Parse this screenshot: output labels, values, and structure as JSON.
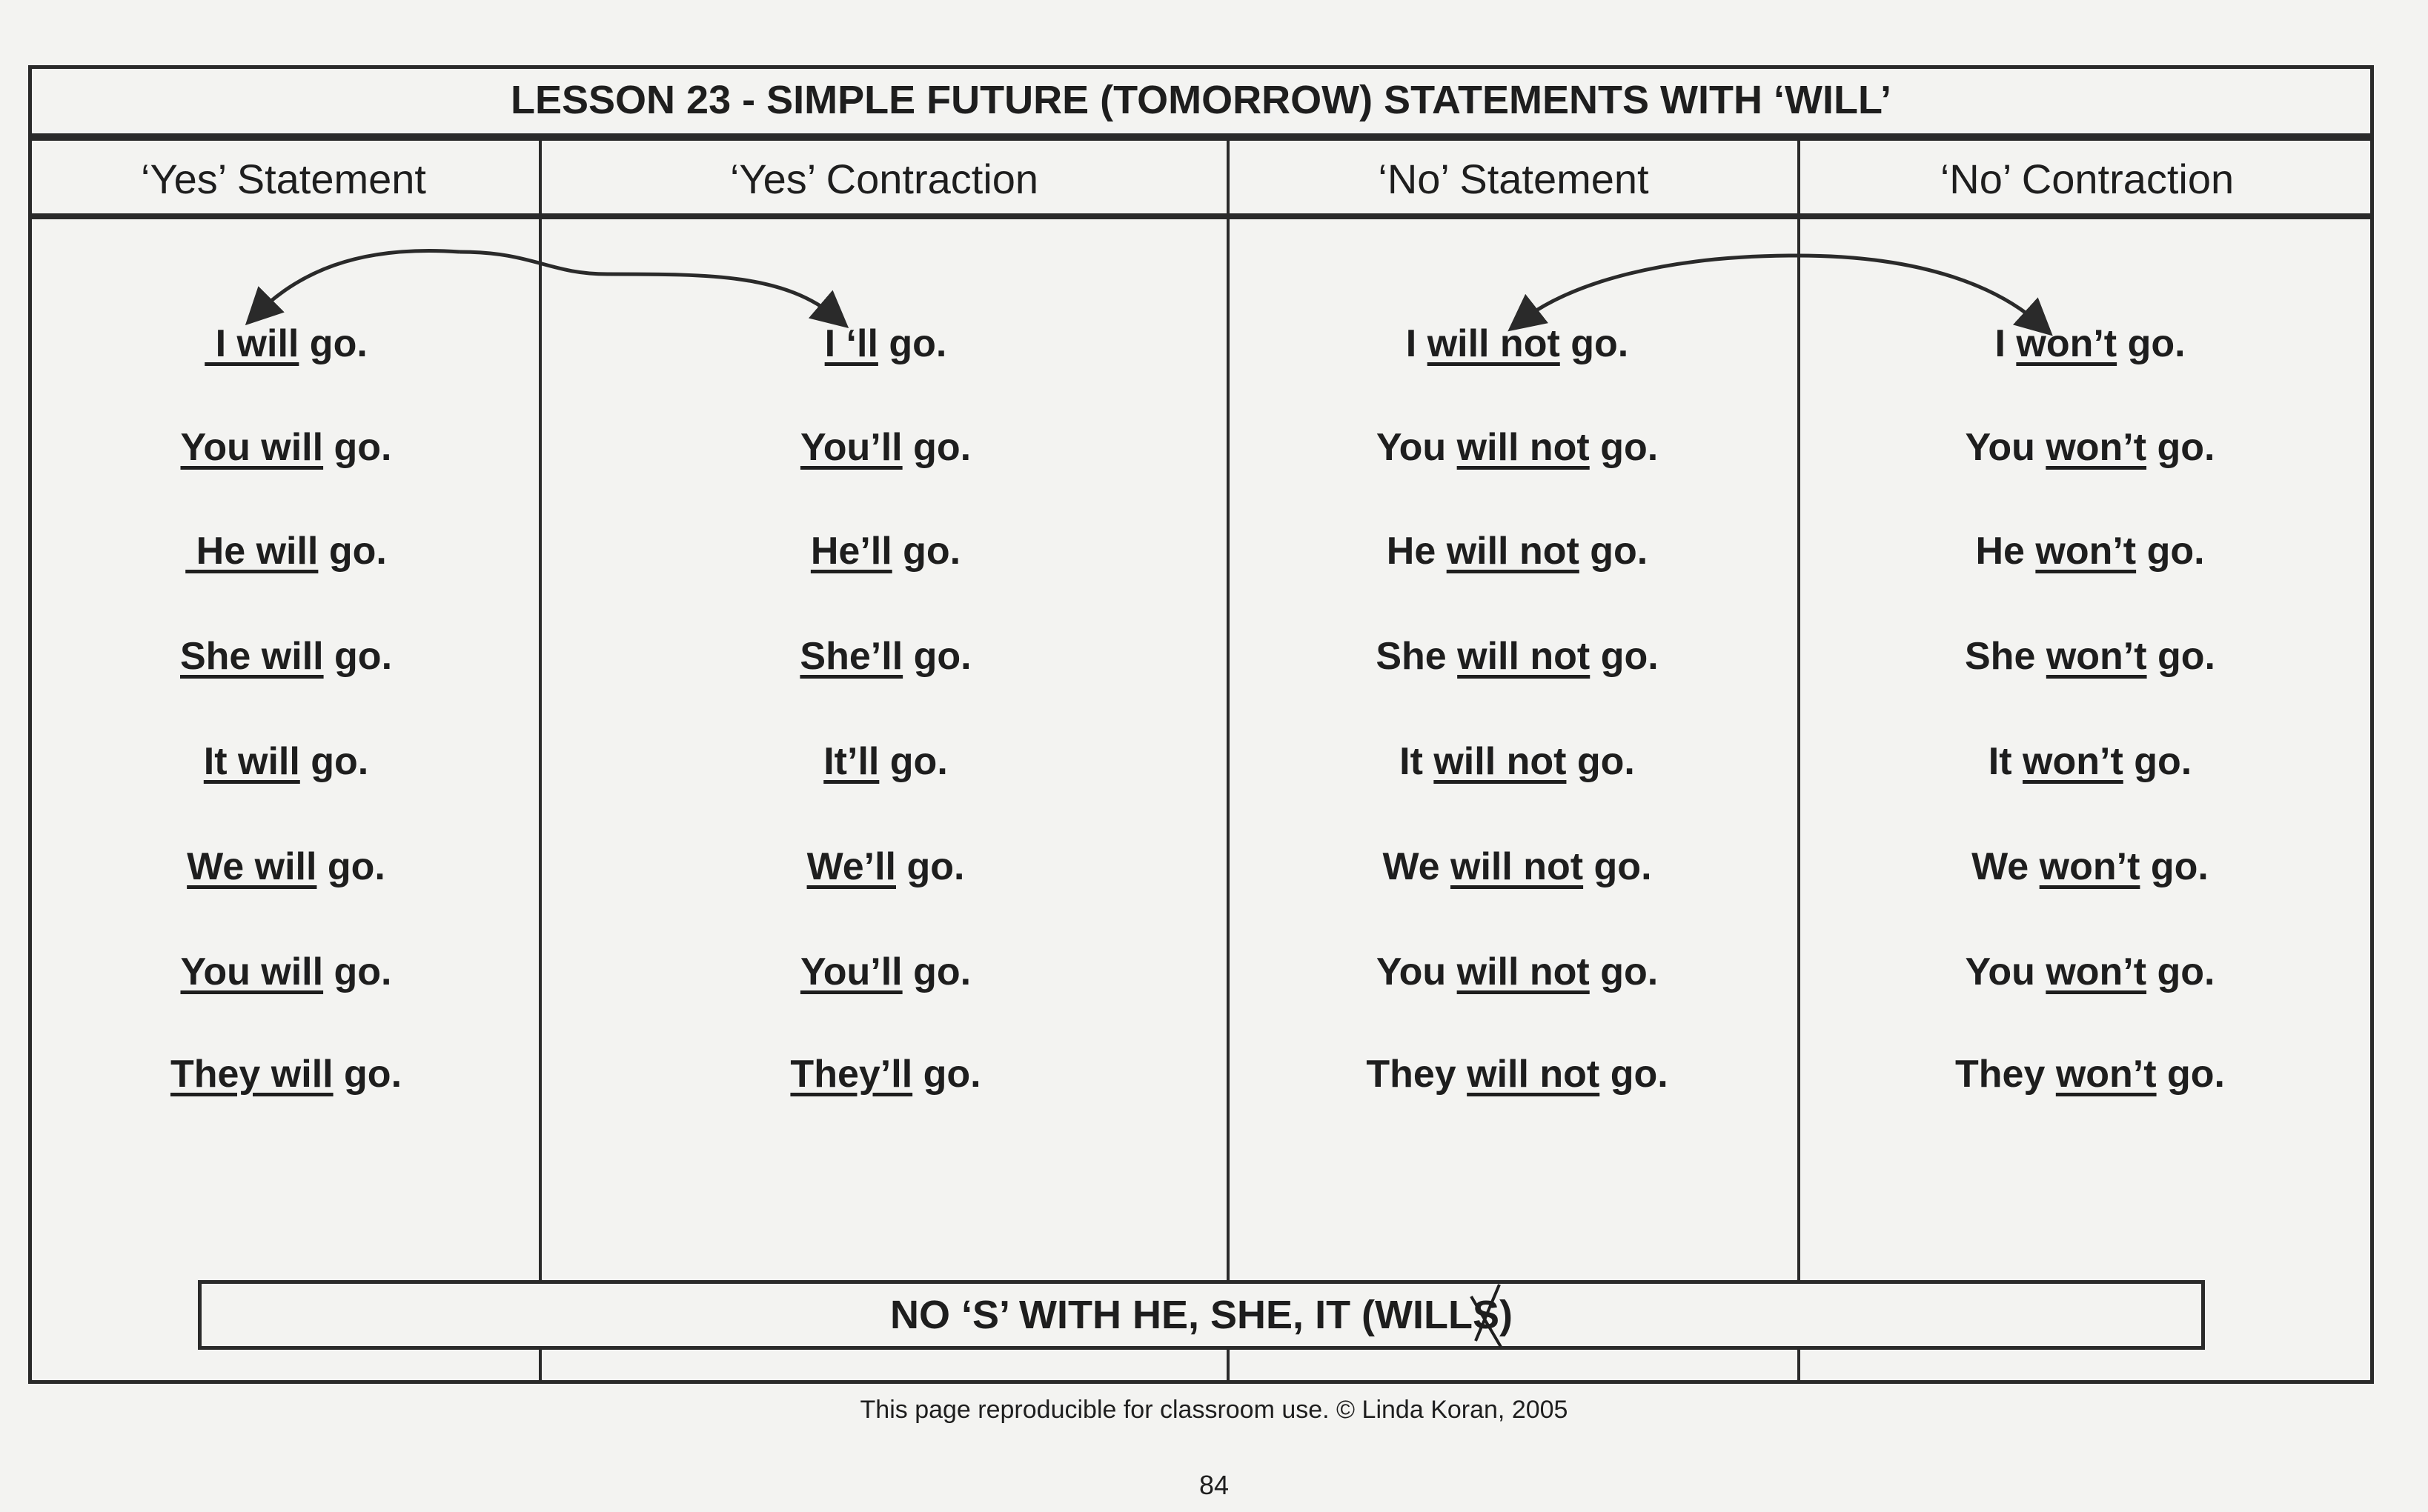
{
  "title": "LESSON 23 - SIMPLE FUTURE  (TOMORROW) STATEMENTS WITH ‘WILL’",
  "columns": [
    "‘Yes’ Statement",
    "‘Yes’ Contraction",
    "‘No’ Statement",
    "‘No’ Contraction"
  ],
  "rows": [
    [
      [
        {
          "t": " I will",
          "u": true
        },
        {
          "t": " go.",
          "u": false
        }
      ],
      [
        {
          "t": "I ‘ll",
          "u": true
        },
        {
          "t": " go.",
          "u": false
        }
      ],
      [
        {
          "t": "I ",
          "u": false
        },
        {
          "t": "will not",
          "u": true
        },
        {
          "t": " go.",
          "u": false
        }
      ],
      [
        {
          "t": "I ",
          "u": false
        },
        {
          "t": "won’t",
          "u": true
        },
        {
          "t": " go.",
          "u": false
        }
      ]
    ],
    [
      [
        {
          "t": "You will",
          "u": true
        },
        {
          "t": " go.",
          "u": false
        }
      ],
      [
        {
          "t": "You’ll",
          "u": true
        },
        {
          "t": " go.",
          "u": false
        }
      ],
      [
        {
          "t": "You ",
          "u": false
        },
        {
          "t": "will not",
          "u": true
        },
        {
          "t": " go.",
          "u": false
        }
      ],
      [
        {
          "t": "You ",
          "u": false
        },
        {
          "t": "won’t",
          "u": true
        },
        {
          "t": " go.",
          "u": false
        }
      ]
    ],
    [
      [
        {
          "t": " He will",
          "u": true
        },
        {
          "t": " go.",
          "u": false
        }
      ],
      [
        {
          "t": "He’ll",
          "u": true
        },
        {
          "t": " go.",
          "u": false
        }
      ],
      [
        {
          "t": "He ",
          "u": false
        },
        {
          "t": "will not",
          "u": true
        },
        {
          "t": " go.",
          "u": false
        }
      ],
      [
        {
          "t": "He ",
          "u": false
        },
        {
          "t": "won’t",
          "u": true
        },
        {
          "t": " go.",
          "u": false
        }
      ]
    ],
    [
      [
        {
          "t": "She will",
          "u": true
        },
        {
          "t": " go.",
          "u": false
        }
      ],
      [
        {
          "t": "She’ll",
          "u": true
        },
        {
          "t": " go.",
          "u": false
        }
      ],
      [
        {
          "t": "She ",
          "u": false
        },
        {
          "t": "will not",
          "u": true
        },
        {
          "t": " go.",
          "u": false
        }
      ],
      [
        {
          "t": "She ",
          "u": false
        },
        {
          "t": "won’t",
          "u": true
        },
        {
          "t": " go.",
          "u": false
        }
      ]
    ],
    [
      [
        {
          "t": "It will",
          "u": true
        },
        {
          "t": " go.",
          "u": false
        }
      ],
      [
        {
          "t": "It’ll",
          "u": true
        },
        {
          "t": " go.",
          "u": false
        }
      ],
      [
        {
          "t": "It ",
          "u": false
        },
        {
          "t": "will not",
          "u": true
        },
        {
          "t": " go.",
          "u": false
        }
      ],
      [
        {
          "t": "It ",
          "u": false
        },
        {
          "t": "won’t",
          "u": true
        },
        {
          "t": " go.",
          "u": false
        }
      ]
    ],
    [
      [
        {
          "t": "We will",
          "u": true
        },
        {
          "t": " go.",
          "u": false
        }
      ],
      [
        {
          "t": "We’ll",
          "u": true
        },
        {
          "t": " go.",
          "u": false
        }
      ],
      [
        {
          "t": "We ",
          "u": false
        },
        {
          "t": "will not",
          "u": true
        },
        {
          "t": " go.",
          "u": false
        }
      ],
      [
        {
          "t": "We ",
          "u": false
        },
        {
          "t": "won’t",
          "u": true
        },
        {
          "t": " go.",
          "u": false
        }
      ]
    ],
    [
      [
        {
          "t": "You will",
          "u": true
        },
        {
          "t": " go.",
          "u": false
        }
      ],
      [
        {
          "t": "You’ll",
          "u": true
        },
        {
          "t": " go.",
          "u": false
        }
      ],
      [
        {
          "t": "You ",
          "u": false
        },
        {
          "t": "will not",
          "u": true
        },
        {
          "t": " go.",
          "u": false
        }
      ],
      [
        {
          "t": "You ",
          "u": false
        },
        {
          "t": "won’t",
          "u": true
        },
        {
          "t": " go.",
          "u": false
        }
      ]
    ],
    [
      [
        {
          "t": "They will",
          "u": true
        },
        {
          "t": " go.",
          "u": false
        }
      ],
      [
        {
          "t": "They’ll",
          "u": true
        },
        {
          "t": " go.",
          "u": false
        }
      ],
      [
        {
          "t": "They ",
          "u": false
        },
        {
          "t": "will not",
          "u": true
        },
        {
          "t": " go.",
          "u": false
        }
      ],
      [
        {
          "t": "They ",
          "u": false
        },
        {
          "t": "won’t",
          "u": true
        },
        {
          "t": " go.",
          "u": false
        }
      ]
    ]
  ],
  "note": {
    "before": "NO ‘S’ WITH HE, SHE, IT  (WILL",
    "crossed": "S",
    "after": ")"
  },
  "footer": "This page reproducible for classroom use.  © Linda Koran, 2005",
  "page_number": "84",
  "colors": {
    "ink": "#1e1e1e",
    "paper": "#f3f3f1"
  }
}
